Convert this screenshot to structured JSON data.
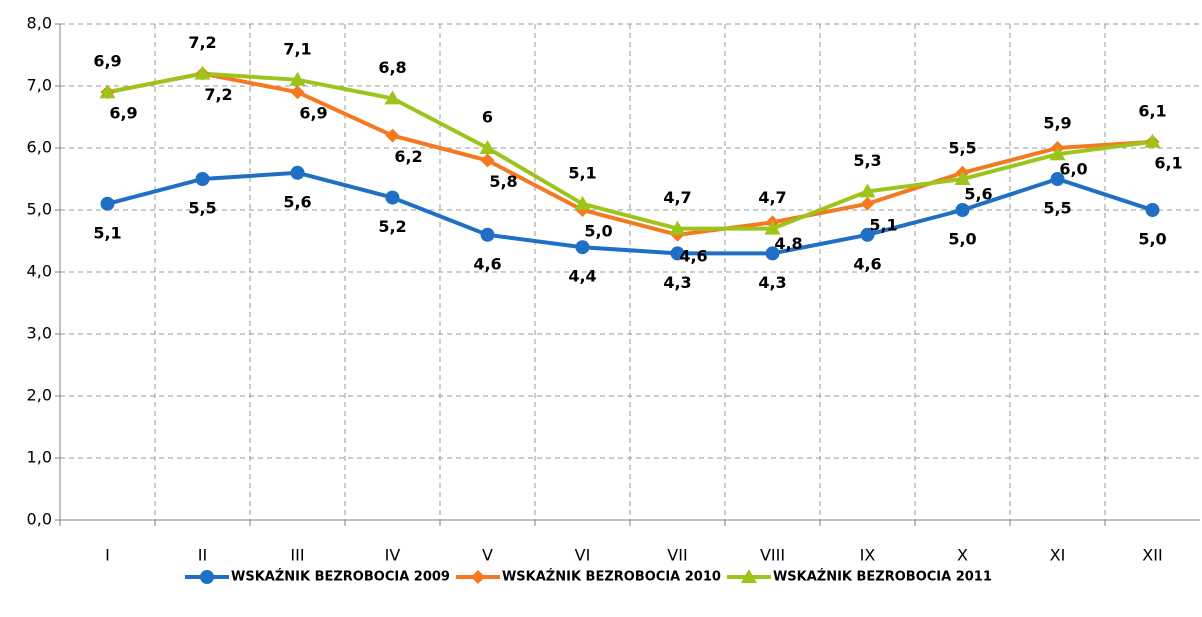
{
  "chart_data": {
    "type": "line",
    "categories": [
      "I",
      "II",
      "III",
      "IV",
      "V",
      "VI",
      "VII",
      "VIII",
      "IX",
      "X",
      "XI",
      "XII"
    ],
    "series": [
      {
        "name": "WSKAŹNIK BEZROBOCIA 2009",
        "color": "#1f6fc5",
        "marker": "circle",
        "values": [
          5.1,
          5.5,
          5.6,
          5.2,
          4.6,
          4.4,
          4.3,
          4.3,
          4.6,
          5.0,
          5.5,
          5.0
        ],
        "value_labels": [
          "5,1",
          "5,5",
          "5,6",
          "5,2",
          "4,6",
          "4,4",
          "4,3",
          "4,3",
          "4,6",
          "5,0",
          "5,5",
          "5,0"
        ]
      },
      {
        "name": "WSKAŹNIK BEZROBOCIA 2010",
        "color": "#f47920",
        "marker": "diamond",
        "values": [
          6.9,
          7.2,
          6.9,
          6.2,
          5.8,
          5.0,
          4.6,
          4.8,
          5.1,
          5.6,
          6.0,
          6.1
        ],
        "value_labels": [
          "6,9",
          "7,2",
          "6,9",
          "6,2",
          "5,8",
          "5,0",
          "4,6",
          "4,8",
          "5,1",
          "5,6",
          "6,0",
          "6,1"
        ]
      },
      {
        "name": "WSKAŹNIK BEZROBOCIA 2011",
        "color": "#9dc41a",
        "marker": "triangle",
        "values": [
          6.9,
          7.2,
          7.1,
          6.8,
          6,
          5.1,
          4.7,
          4.7,
          5.3,
          5.5,
          5.9,
          6.1
        ],
        "value_labels": [
          "6,9",
          "7,2",
          "7,1",
          "6,8",
          "6",
          "5,1",
          "4,7",
          "4,7",
          "5,3",
          "5,5",
          "5,9",
          "6,1"
        ]
      }
    ],
    "ylim": [
      0,
      8
    ],
    "yticks": [
      {
        "value": 0,
        "label": "0,0"
      },
      {
        "value": 1,
        "label": "1,0"
      },
      {
        "value": 2,
        "label": "2,0"
      },
      {
        "value": 3,
        "label": "3,0"
      },
      {
        "value": 4,
        "label": "4,0"
      },
      {
        "value": 5,
        "label": "5,0"
      },
      {
        "value": 6,
        "label": "6,0"
      },
      {
        "value": 7,
        "label": "7,0"
      },
      {
        "value": 8,
        "label": "8,0"
      }
    ],
    "grid": true,
    "legend": "bottom"
  }
}
